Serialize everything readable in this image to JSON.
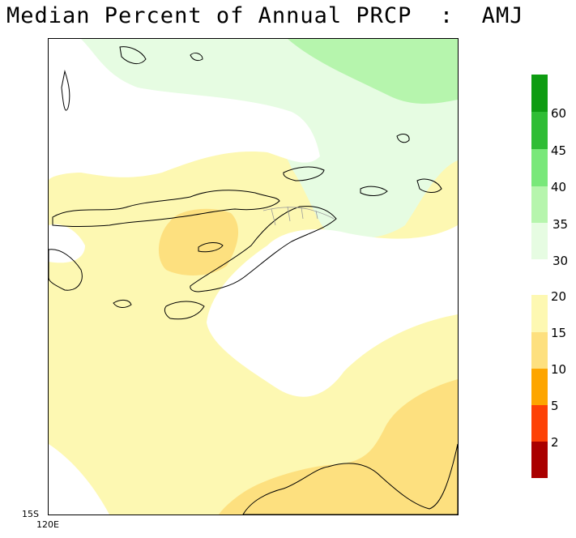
{
  "title": "Median Percent of Annual PRCP  :  AMJ",
  "axes": {
    "lat_label": "15S",
    "lon_label": "120E"
  },
  "legend": {
    "upper": [
      {
        "label": "60",
        "color": "#0e9c12"
      },
      {
        "label": "45",
        "color": "#2fbd35"
      },
      {
        "label": "40",
        "color": "#79e87a"
      },
      {
        "label": "35",
        "color": "#b6f5ad"
      },
      {
        "label": "30",
        "color": "#e6fce2"
      }
    ],
    "lower": [
      {
        "label": "20",
        "color": "#fdf8b2"
      },
      {
        "label": "15",
        "color": "#fde07f"
      },
      {
        "label": "10",
        "color": "#fda500"
      },
      {
        "label": "5",
        "color": "#fd4106"
      },
      {
        "label": "2",
        "color": "#aa0000"
      }
    ]
  },
  "colors": {
    "pale_yellow": "#fdf8b2",
    "mid_yellow": "#fde07f",
    "pale_green": "#e6fce2",
    "light_green": "#b6f5ad"
  }
}
